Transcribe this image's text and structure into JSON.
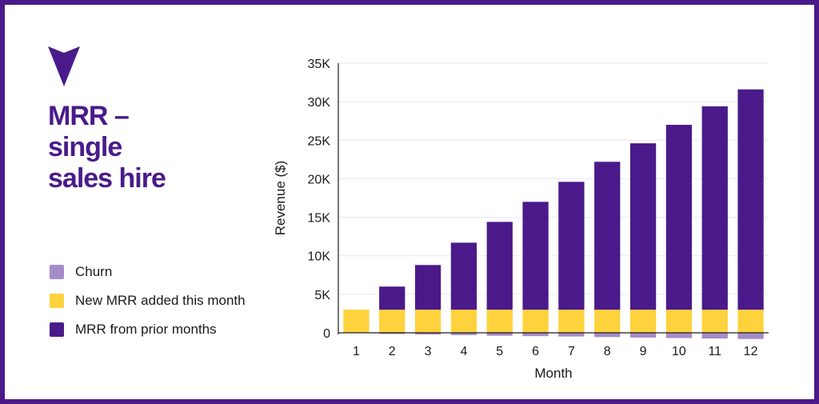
{
  "title_lines": [
    "MRR –",
    "single",
    "sales hire"
  ],
  "colors": {
    "brand": "#4a1a8a",
    "prior": "#4a1a8a",
    "new": "#fdd23c",
    "churn": "#a68bc9"
  },
  "icons": {
    "logo": "down-arrowhead-icon"
  },
  "legend": [
    {
      "label": "Churn",
      "color": "#a68bc9"
    },
    {
      "label": "New MRR added this month",
      "color": "#fdd23c"
    },
    {
      "label": "MRR from prior months",
      "color": "#4a1a8a"
    }
  ],
  "chart_data": {
    "type": "bar",
    "stacked": true,
    "xlabel": "Month",
    "ylabel": "Revenue ($)",
    "ylim": [
      -1000,
      35000
    ],
    "yticks": [
      0,
      5000,
      10000,
      15000,
      20000,
      25000,
      30000,
      35000
    ],
    "ytick_labels": [
      "0",
      "5K",
      "10K",
      "15K",
      "20K",
      "25K",
      "30K",
      "35K"
    ],
    "categories": [
      "1",
      "2",
      "3",
      "4",
      "5",
      "6",
      "7",
      "8",
      "9",
      "10",
      "11",
      "12"
    ],
    "grid": true,
    "series": [
      {
        "name": "MRR from prior months",
        "color": "#4a1a8a",
        "values": [
          0,
          3000,
          5800,
          8700,
          11400,
          14000,
          16600,
          19200,
          21600,
          24000,
          26400,
          28600
        ]
      },
      {
        "name": "New MRR added this month",
        "color": "#fdd23c",
        "values": [
          3000,
          3000,
          3000,
          3000,
          3000,
          3000,
          3000,
          3000,
          3000,
          3000,
          3000,
          3000
        ]
      },
      {
        "name": "Churn",
        "color": "#a68bc9",
        "values": [
          0,
          -150,
          -220,
          -300,
          -380,
          -430,
          -480,
          -550,
          -620,
          -680,
          -740,
          -800
        ]
      }
    ]
  }
}
